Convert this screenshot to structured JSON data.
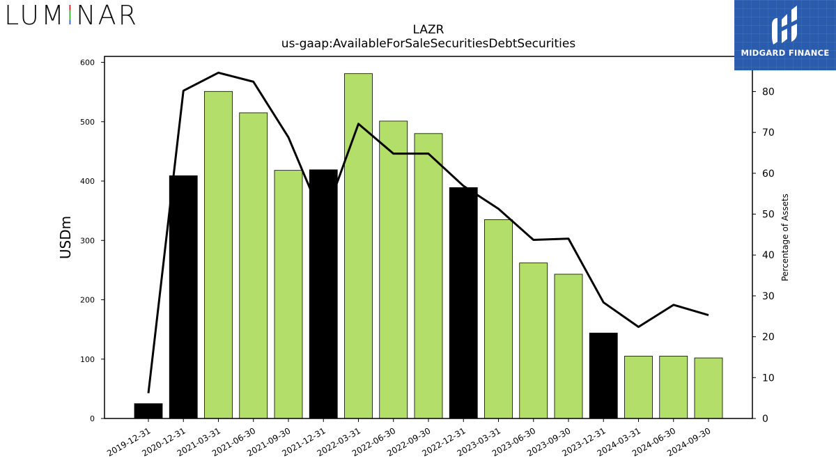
{
  "branding": {
    "company_logo": {
      "letters": [
        "L",
        "U",
        "M",
        "I",
        "N",
        "A",
        "R"
      ],
      "text": "LUMINAR"
    },
    "badge": {
      "text": "MIDGARD FINANCE",
      "color": "#2a5cad",
      "icon": "midgard-logo-icon"
    }
  },
  "colors": {
    "bar_highlight": "#000000",
    "bar_default": "#b3de69",
    "line": "#000000",
    "accent_red": "#e0262b",
    "accent_green": "#3bb54a",
    "accent_blue": "#3d63c9"
  },
  "chart_data": {
    "type": "bar",
    "title": "LAZR",
    "subtitle": "us-gaap:AvailableForSaleSecuritiesDebtSecurities",
    "ylabel": "USDm",
    "y2label": "Percentage of Assets",
    "ylim": [
      0,
      610
    ],
    "y2lim": [
      0,
      88.6
    ],
    "yticks": [
      0,
      100,
      200,
      300,
      400,
      500,
      600
    ],
    "y2ticks": [
      0,
      10,
      20,
      30,
      40,
      50,
      60,
      70,
      80
    ],
    "categories": [
      "2019-12-31",
      "2020-12-31",
      "2021-03-31",
      "2021-06-30",
      "2021-09-30",
      "2021-12-31",
      "2022-03-31",
      "2022-06-30",
      "2022-09-30",
      "2022-12-31",
      "2023-03-31",
      "2023-06-30",
      "2023-09-30",
      "2023-12-31",
      "2024-03-31",
      "2024-06-30",
      "2024-09-30"
    ],
    "series": [
      {
        "type": "bar",
        "values": [
          25,
          409,
          551,
          515,
          418,
          419,
          581,
          501,
          480,
          389,
          335,
          262,
          243,
          144,
          105,
          105,
          102
        ],
        "highlight": [
          true,
          true,
          false,
          false,
          false,
          true,
          false,
          false,
          false,
          true,
          false,
          false,
          false,
          true,
          false,
          false,
          false
        ]
      },
      {
        "type": "line",
        "axis": "right",
        "values": [
          6.2,
          80.2,
          84.6,
          82.4,
          68.8,
          48.5,
          72.1,
          64.8,
          64.8,
          56.9,
          51.3,
          43.7,
          44.0,
          28.4,
          22.4,
          27.8,
          25.3
        ]
      }
    ]
  }
}
